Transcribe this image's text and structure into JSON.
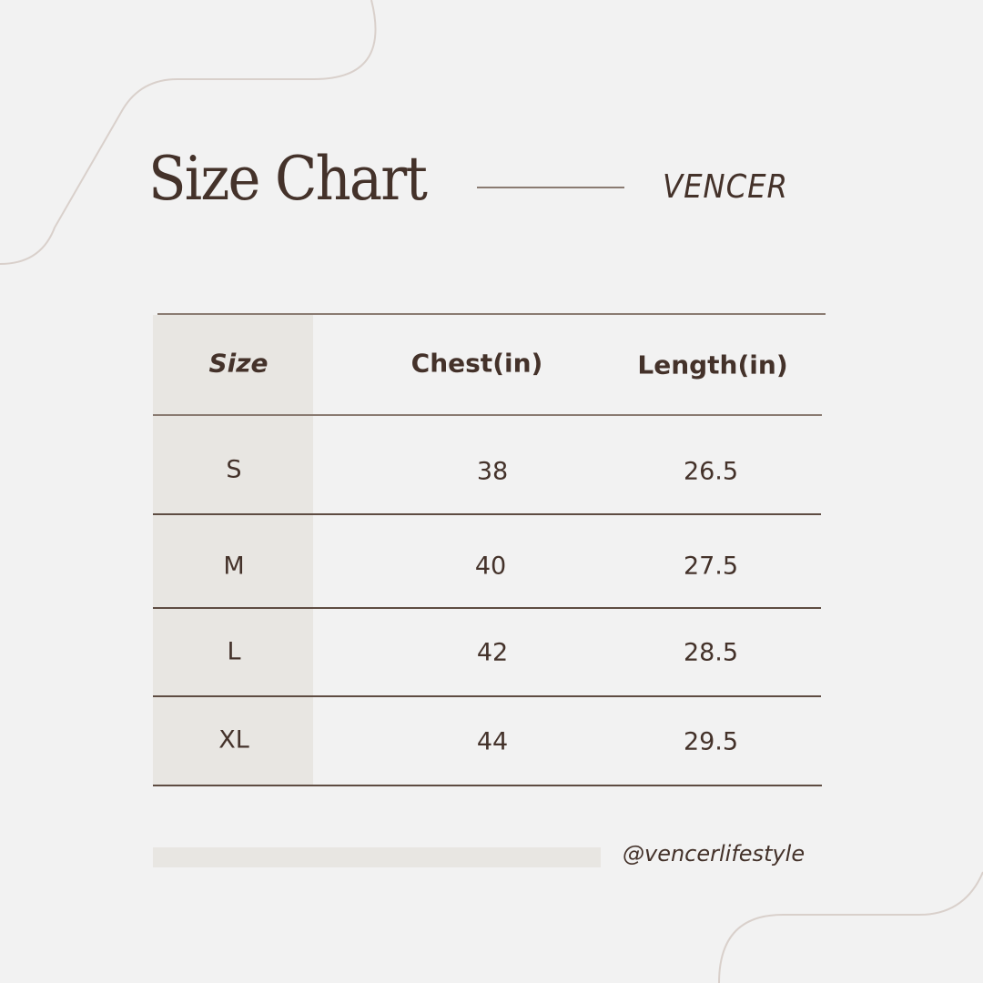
{
  "header": {
    "title": "Size Chart",
    "brand": "VENCER"
  },
  "table": {
    "columns": [
      "Size",
      "Chest(in)",
      "Length(in)"
    ],
    "rows": [
      [
        "S",
        "38",
        "26.5"
      ],
      [
        "M",
        "40",
        "27.5"
      ],
      [
        "L",
        "42",
        "28.5"
      ],
      [
        "XL",
        "44",
        "29.5"
      ]
    ]
  },
  "footer": {
    "handle": "@vencerlifestyle"
  },
  "colors": {
    "background": "#f2f2f2",
    "text": "#44322a",
    "shade": "#e8e6e2",
    "decor": "#d9d0cb"
  }
}
